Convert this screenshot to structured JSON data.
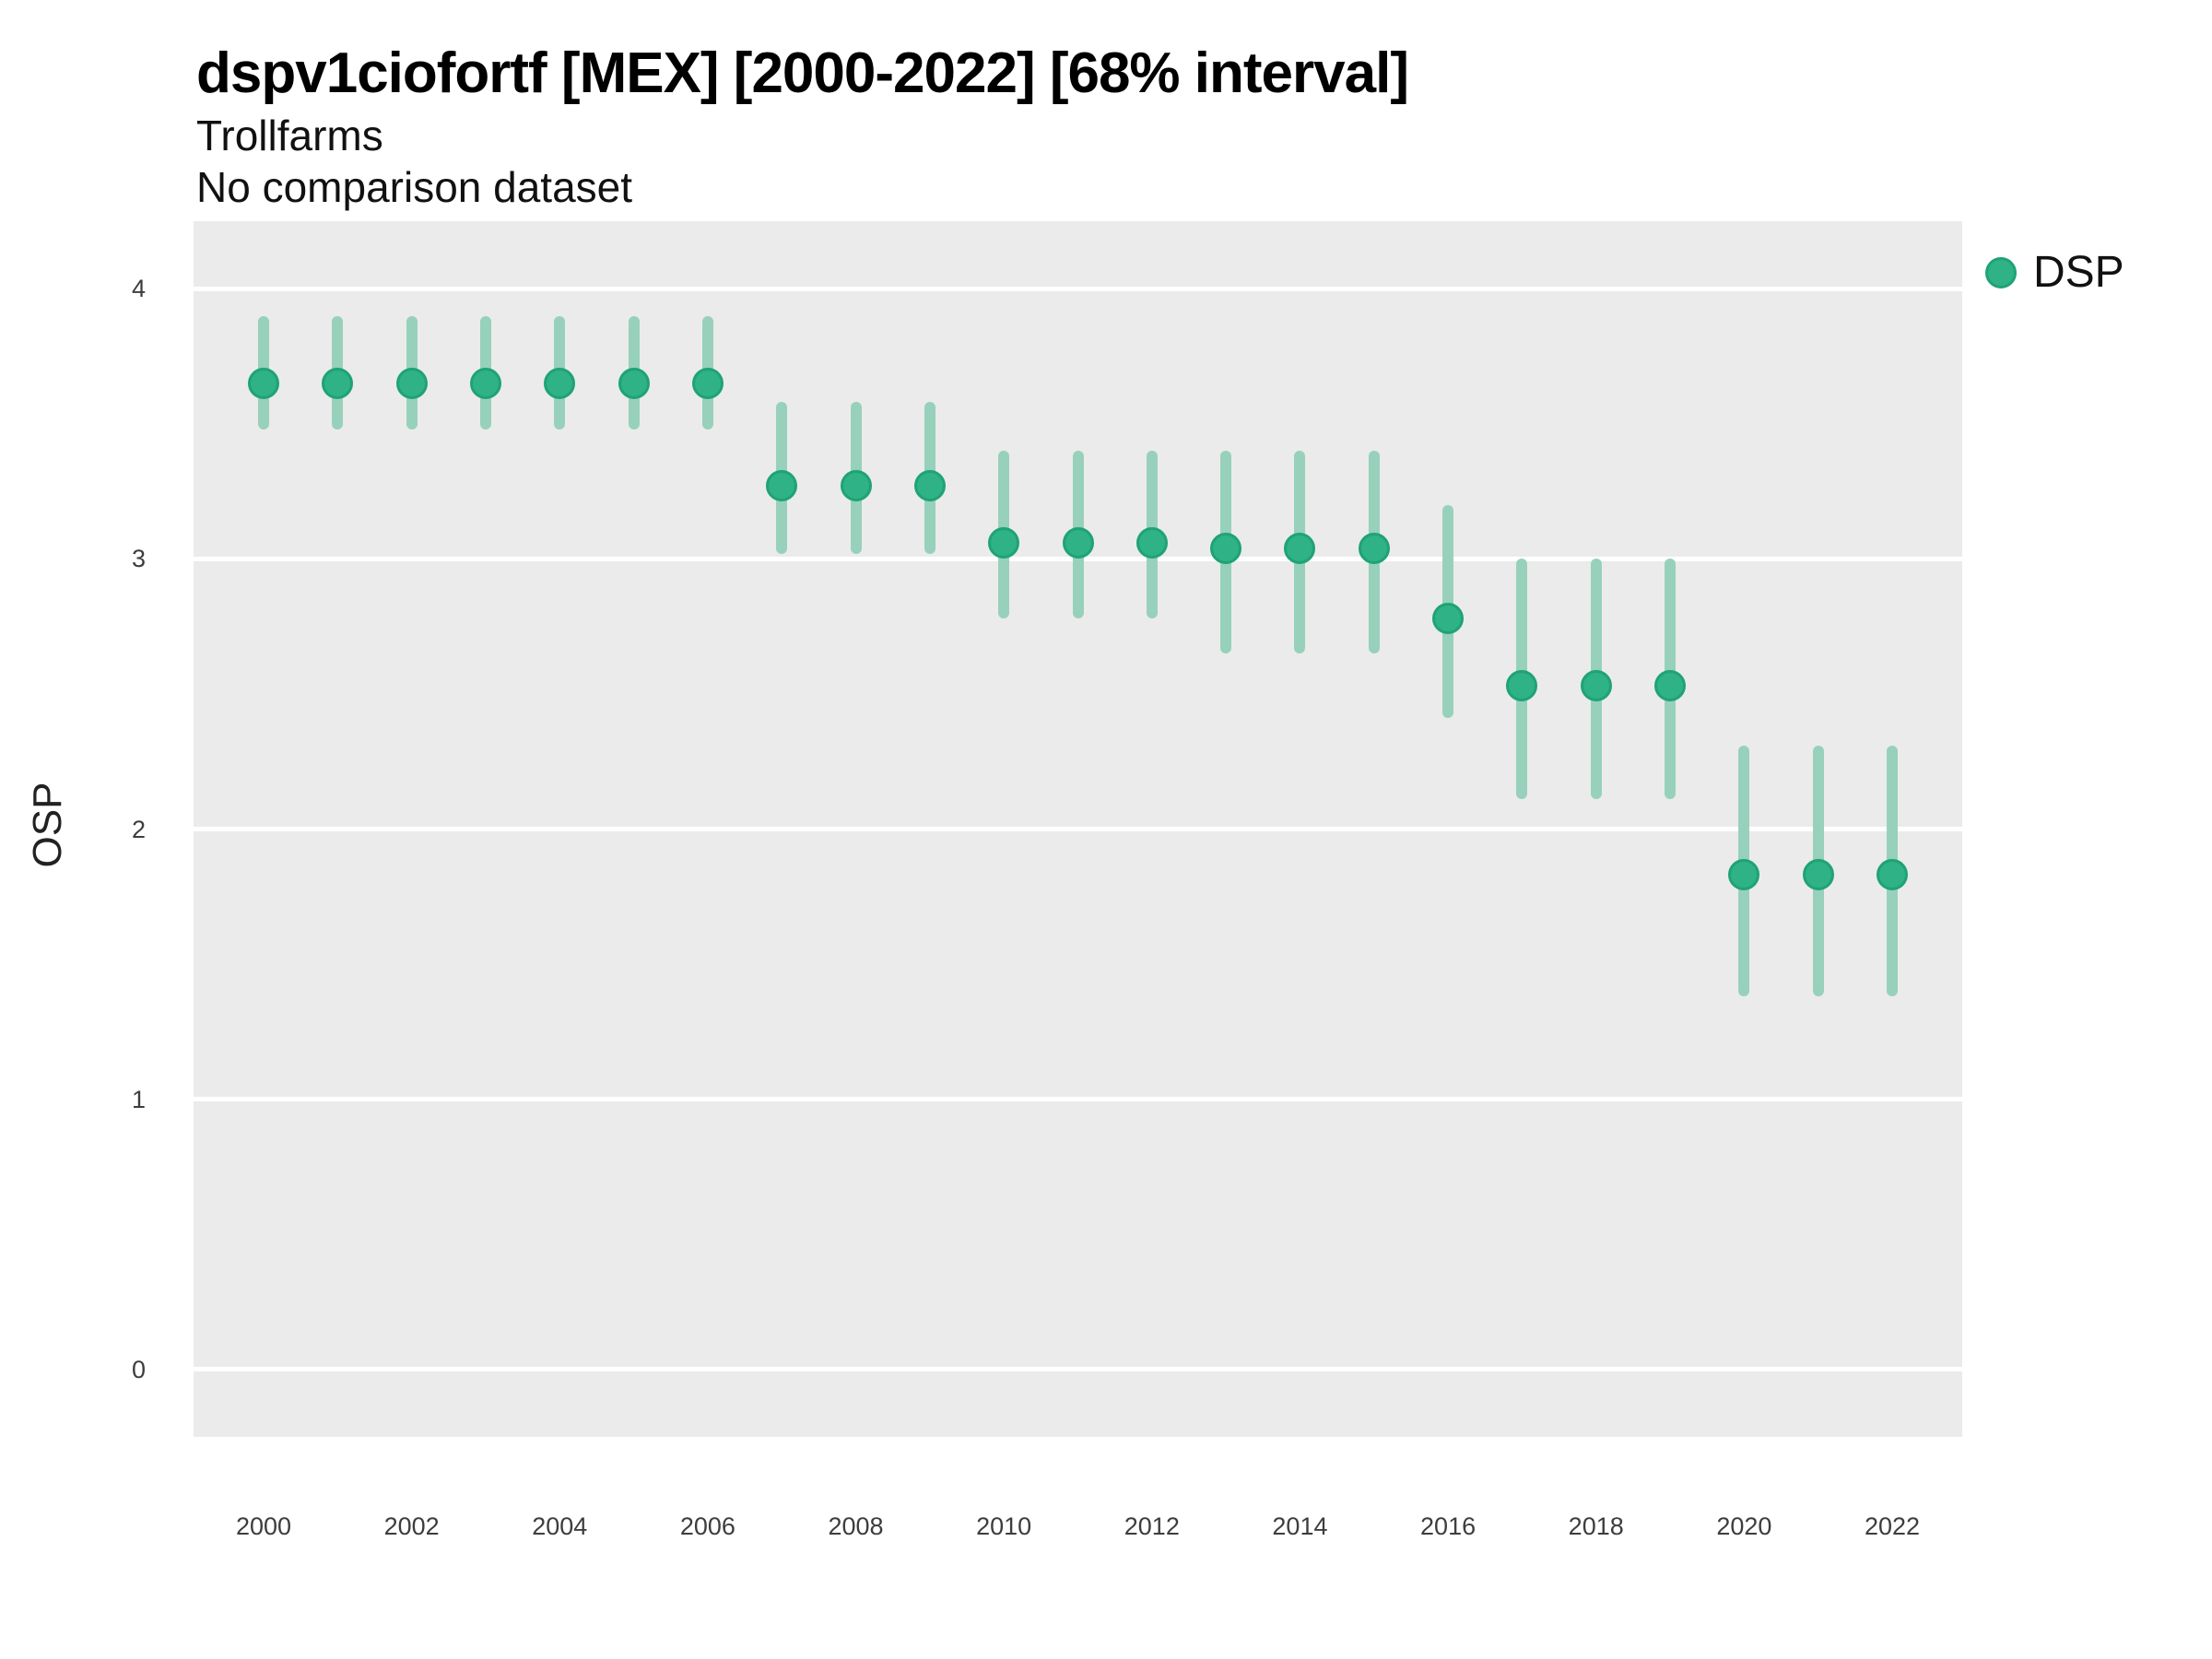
{
  "header": {
    "title": "dspv1ciofortf [MEX] [2000-2022] [68% interval]",
    "subtitle": "Trollfarms",
    "note": "No comparison dataset"
  },
  "legend": {
    "items": [
      {
        "label": "DSP",
        "color": "#2eb286"
      }
    ]
  },
  "colors": {
    "point_fill": "#2eb286",
    "point_border": "#1fa375",
    "interval_bar": "#97d1bb",
    "panel_background": "#ebebeb",
    "gridline": "#ffffff",
    "tick_text": "#3d3d3d"
  },
  "chart_data": {
    "type": "pointrange",
    "title": "dspv1ciofortf [MEX] [2000-2022] [68% interval]",
    "subtitle": "Trollfarms",
    "note": "No comparison dataset",
    "interval_level": "68%",
    "xlabel": "",
    "ylabel": "OSP",
    "ylim": [
      -0.25,
      4.25
    ],
    "yticks": [
      0,
      1,
      2,
      3,
      4
    ],
    "xticks": [
      2000,
      2002,
      2004,
      2006,
      2008,
      2010,
      2012,
      2014,
      2016,
      2018,
      2020,
      2022
    ],
    "grid": "major-horizontal",
    "legend_position": "right",
    "series": [
      {
        "name": "DSP",
        "points": [
          {
            "x": 2000,
            "y": 3.65,
            "low": 3.48,
            "high": 3.9
          },
          {
            "x": 2001,
            "y": 3.65,
            "low": 3.48,
            "high": 3.9
          },
          {
            "x": 2002,
            "y": 3.65,
            "low": 3.48,
            "high": 3.9
          },
          {
            "x": 2003,
            "y": 3.65,
            "low": 3.48,
            "high": 3.9
          },
          {
            "x": 2004,
            "y": 3.65,
            "low": 3.48,
            "high": 3.9
          },
          {
            "x": 2005,
            "y": 3.65,
            "low": 3.48,
            "high": 3.9
          },
          {
            "x": 2006,
            "y": 3.65,
            "low": 3.48,
            "high": 3.9
          },
          {
            "x": 2007,
            "y": 3.27,
            "low": 3.02,
            "high": 3.58
          },
          {
            "x": 2008,
            "y": 3.27,
            "low": 3.02,
            "high": 3.58
          },
          {
            "x": 2009,
            "y": 3.27,
            "low": 3.02,
            "high": 3.58
          },
          {
            "x": 2010,
            "y": 3.06,
            "low": 2.78,
            "high": 3.4
          },
          {
            "x": 2011,
            "y": 3.06,
            "low": 2.78,
            "high": 3.4
          },
          {
            "x": 2012,
            "y": 3.06,
            "low": 2.78,
            "high": 3.4
          },
          {
            "x": 2013,
            "y": 3.04,
            "low": 2.65,
            "high": 3.4
          },
          {
            "x": 2014,
            "y": 3.04,
            "low": 2.65,
            "high": 3.4
          },
          {
            "x": 2015,
            "y": 3.04,
            "low": 2.65,
            "high": 3.4
          },
          {
            "x": 2016,
            "y": 2.78,
            "low": 2.41,
            "high": 3.2
          },
          {
            "x": 2017,
            "y": 2.53,
            "low": 2.11,
            "high": 3.0
          },
          {
            "x": 2018,
            "y": 2.53,
            "low": 2.11,
            "high": 3.0
          },
          {
            "x": 2019,
            "y": 2.53,
            "low": 2.11,
            "high": 3.0
          },
          {
            "x": 2020,
            "y": 1.83,
            "low": 1.38,
            "high": 2.31
          },
          {
            "x": 2021,
            "y": 1.83,
            "low": 1.38,
            "high": 2.31
          },
          {
            "x": 2022,
            "y": 1.83,
            "low": 1.38,
            "high": 2.31
          }
        ]
      }
    ]
  }
}
